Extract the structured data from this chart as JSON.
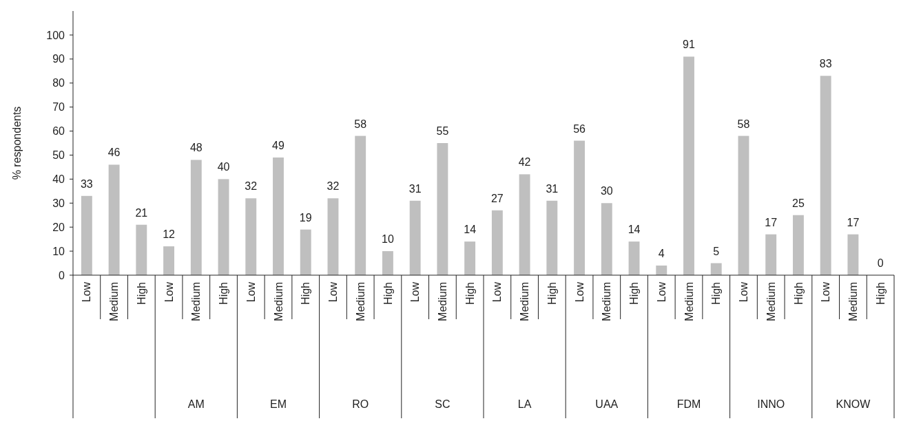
{
  "chart_data": {
    "type": "bar",
    "ylabel": "% respondents",
    "categories": [
      "Low",
      "Medium",
      "High",
      "Low",
      "Medium",
      "High",
      "Low",
      "Medium",
      "High",
      "Low",
      "Medium",
      "High",
      "Low",
      "Medium",
      "High",
      "Low",
      "Medium",
      "High",
      "Low",
      "Medium",
      "High",
      "Low",
      "Medium",
      "High",
      "Low",
      "Medium",
      "High",
      "Low",
      "Medium",
      "High"
    ],
    "values": [
      33,
      46,
      21,
      12,
      48,
      40,
      32,
      49,
      19,
      32,
      58,
      10,
      31,
      55,
      14,
      27,
      42,
      31,
      56,
      30,
      14,
      4,
      91,
      5,
      58,
      17,
      25,
      83,
      17,
      0
    ],
    "color": "#bfbfbf",
    "ylim": [
      0,
      110
    ],
    "yticks": [
      0,
      10,
      20,
      30,
      40,
      50,
      60,
      70,
      80,
      90,
      100
    ],
    "data_labels": true,
    "grid": false,
    "annotations": [
      "AM",
      "EM",
      "RO",
      "SC",
      "LA",
      "UAA",
      "FDM",
      "INNO",
      "KNOW"
    ]
  }
}
